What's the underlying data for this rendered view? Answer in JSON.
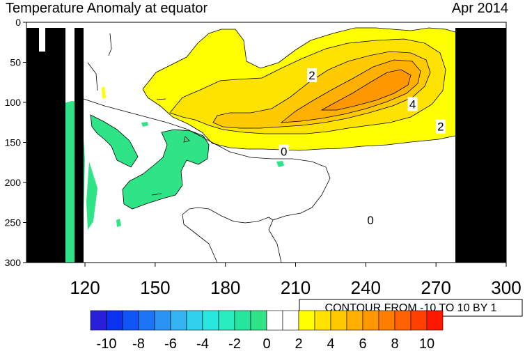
{
  "chart_data": {
    "type": "contour",
    "title": "Temperature Anomaly at equator",
    "date": "Apr 2014",
    "xlabel": "",
    "ylabel": "",
    "xlim": [
      95,
      300
    ],
    "ylim": [
      300,
      0
    ],
    "x_ticks": [
      120,
      150,
      180,
      210,
      240,
      270,
      300
    ],
    "y_ticks": [
      0,
      50,
      100,
      150,
      200,
      250,
      300
    ],
    "contour_info": "CONTOUR FROM -10 TO 10 BY 1",
    "colorbar": {
      "levels": [
        -11,
        -10,
        -9,
        -8,
        -7,
        -6,
        -5,
        -4,
        -3,
        -2,
        -1,
        0,
        1,
        2,
        3,
        4,
        5,
        6,
        7,
        8,
        9,
        10,
        11
      ],
      "colors": [
        "#2a1fd8",
        "#0b32f0",
        "#0f54f5",
        "#1a74f5",
        "#2b93f3",
        "#35b2f2",
        "#2fd1ef",
        "#28e8df",
        "#29edbf",
        "#25e69c",
        "#2ee486",
        "#ffffff",
        "#ffffff",
        "#ffff00",
        "#ffe300",
        "#ffcb00",
        "#ffb000",
        "#ff9800",
        "#ff7e00",
        "#ff6100",
        "#ff4100",
        "#ff1800"
      ],
      "tick_labels": [
        "-10",
        "-8",
        "-6",
        "-4",
        "-2",
        "0",
        "2",
        "4",
        "6",
        "8",
        "10"
      ],
      "tick_values": [
        -10,
        -8,
        -6,
        -4,
        -2,
        0,
        2,
        4,
        6,
        8,
        10
      ]
    },
    "contour_labels": [
      {
        "text": "2",
        "x": 217,
        "y": 67
      },
      {
        "text": "2",
        "x": 272,
        "y": 131
      },
      {
        "text": "4",
        "x": 260,
        "y": 103
      },
      {
        "text": "0",
        "x": 205,
        "y": 162
      },
      {
        "text": "0",
        "x": 242,
        "y": 248
      }
    ],
    "fill_colors": {
      "land": "#000000",
      "neg": "#2ee486",
      "pos1": "#ffff00",
      "pos2": "#ffe300",
      "pos3": "#ffcb00",
      "pos4": "#ffb000",
      "pos5": "#ff9800"
    }
  }
}
